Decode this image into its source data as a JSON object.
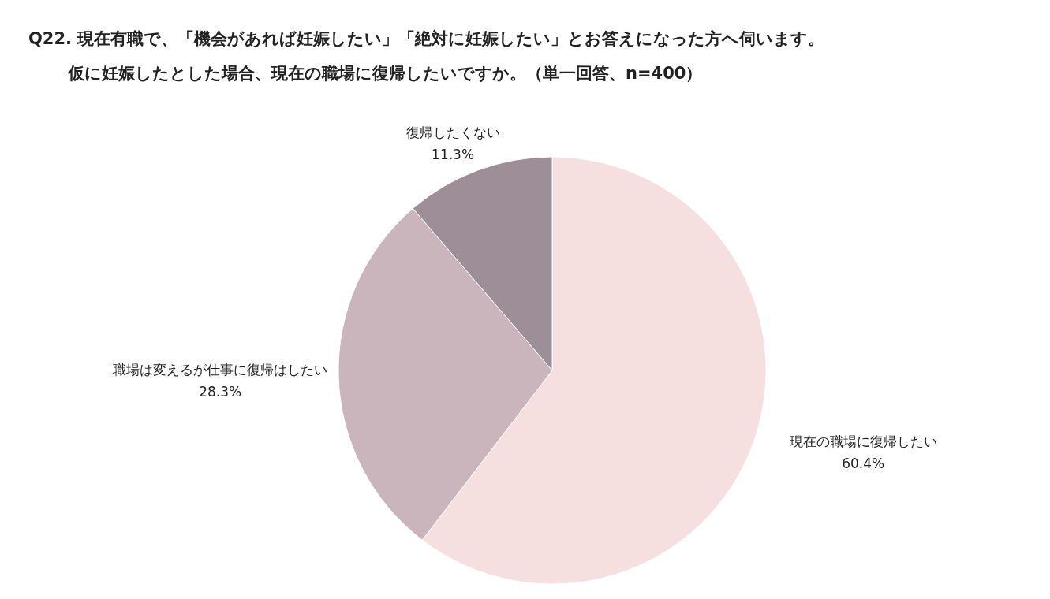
{
  "chart_data": {
    "type": "pie",
    "title": "Q22. 現在有職で、「機会があれば妊娠したい」「絶対に妊娠したい」とお答えになった方へ伺います。",
    "subtitle": "仮に妊娠したとした場合、現在の職場に復帰したいですか。（単一回答、n=400）",
    "categories": [
      "現在の職場に復帰したい",
      "職場は変えるが仕事に復帰はしたい",
      "復帰したくない"
    ],
    "values": [
      60.4,
      28.3,
      11.3
    ],
    "value_labels": [
      "60.4%",
      "28.3%",
      "11.3%"
    ],
    "colors": [
      "#f5dfdf",
      "#c9b5bb",
      "#9e8e98"
    ]
  }
}
